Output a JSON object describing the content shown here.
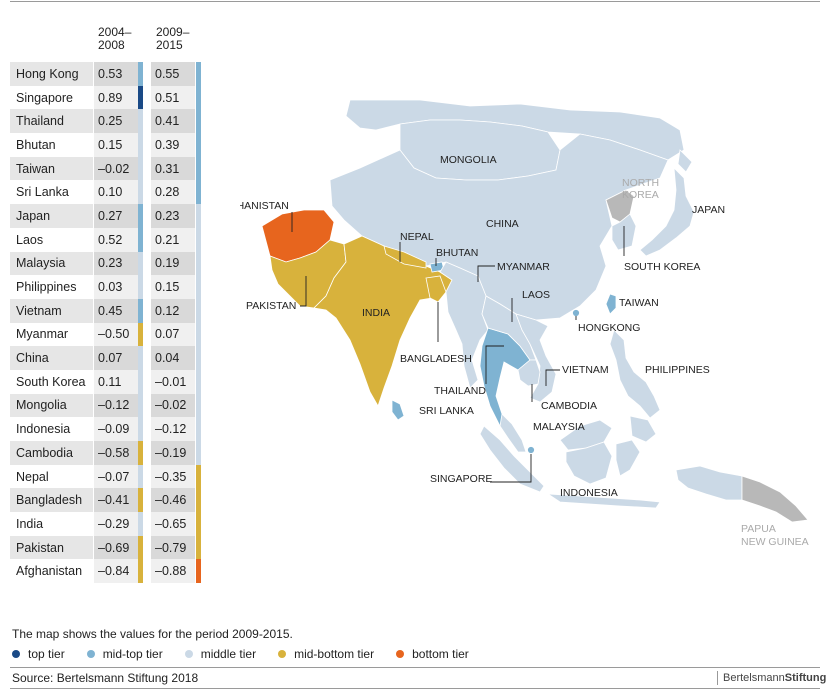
{
  "table": {
    "header_col1": "2004–\n2008",
    "header_col2": "2009–\n2015",
    "rows": [
      {
        "country": "Hong Kong",
        "v1": "0.53",
        "t1": "mid-top",
        "v2": "0.55",
        "t2": "mid-top"
      },
      {
        "country": "Singapore",
        "v1": "0.89",
        "t1": "top",
        "v2": "0.51",
        "t2": "mid-top"
      },
      {
        "country": "Thailand",
        "v1": "0.25",
        "t1": "middle",
        "v2": "0.41",
        "t2": "mid-top"
      },
      {
        "country": "Bhutan",
        "v1": "0.15",
        "t1": "middle",
        "v2": "0.39",
        "t2": "mid-top"
      },
      {
        "country": "Taiwan",
        "v1": "–0.02",
        "t1": "middle",
        "v2": "0.31",
        "t2": "mid-top"
      },
      {
        "country": "Sri Lanka",
        "v1": "0.10",
        "t1": "middle",
        "v2": "0.28",
        "t2": "mid-top"
      },
      {
        "country": "Japan",
        "v1": "0.27",
        "t1": "mid-top",
        "v2": "0.23",
        "t2": "middle"
      },
      {
        "country": "Laos",
        "v1": "0.52",
        "t1": "mid-top",
        "v2": "0.21",
        "t2": "middle"
      },
      {
        "country": "Malaysia",
        "v1": "0.23",
        "t1": "middle",
        "v2": "0.19",
        "t2": "middle"
      },
      {
        "country": "Philippines",
        "v1": "0.03",
        "t1": "middle",
        "v2": "0.15",
        "t2": "middle"
      },
      {
        "country": "Vietnam",
        "v1": "0.45",
        "t1": "mid-top",
        "v2": "0.12",
        "t2": "middle"
      },
      {
        "country": "Myanmar",
        "v1": "–0.50",
        "t1": "mid-bottom",
        "v2": "0.07",
        "t2": "middle"
      },
      {
        "country": "China",
        "v1": "0.07",
        "t1": "middle",
        "v2": "0.04",
        "t2": "middle"
      },
      {
        "country": "South Korea",
        "v1": "0.11",
        "t1": "middle",
        "v2": "–0.01",
        "t2": "middle"
      },
      {
        "country": "Mongolia",
        "v1": "–0.12",
        "t1": "middle",
        "v2": "–0.02",
        "t2": "middle"
      },
      {
        "country": "Indonesia",
        "v1": "–0.09",
        "t1": "middle",
        "v2": "–0.12",
        "t2": "middle"
      },
      {
        "country": "Cambodia",
        "v1": "–0.58",
        "t1": "mid-bottom",
        "v2": "–0.19",
        "t2": "middle"
      },
      {
        "country": "Nepal",
        "v1": "–0.07",
        "t1": "middle",
        "v2": "–0.35",
        "t2": "mid-bottom"
      },
      {
        "country": "Bangladesh",
        "v1": "–0.41",
        "t1": "mid-bottom",
        "v2": "–0.46",
        "t2": "mid-bottom"
      },
      {
        "country": "India",
        "v1": "–0.29",
        "t1": "middle",
        "v2": "–0.65",
        "t2": "mid-bottom"
      },
      {
        "country": "Pakistan",
        "v1": "–0.69",
        "t1": "mid-bottom",
        "v2": "–0.79",
        "t2": "mid-bottom"
      },
      {
        "country": "Afghanistan",
        "v1": "–0.84",
        "t1": "mid-bottom",
        "v2": "–0.88",
        "t2": "bottom"
      }
    ]
  },
  "tiers": {
    "top": "#1a4a86",
    "mid-top": "#7fb3d2",
    "middle": "#cbd9e6",
    "mid-bottom": "#d8b23c",
    "bottom": "#e7651e",
    "no-data": "#b8b8b8"
  },
  "map_labels": {
    "mongolia": "MONGOLIA",
    "north_korea": "NORTH\nKOREA",
    "japan": "JAPAN",
    "china": "CHINA",
    "afghanistan": "AFGHANISTAN",
    "nepal": "NEPAL",
    "bhutan": "BHUTAN",
    "myanmar": "MYANMAR",
    "south_korea": "SOUTH KOREA",
    "pakistan": "PAKISTAN",
    "india": "INDIA",
    "laos": "LAOS",
    "taiwan": "TAIWAN",
    "hongkong": "HONGKONG",
    "bangladesh": "BANGLADESH",
    "vietnam": "VIETNAM",
    "philippines": "PHILIPPINES",
    "thailand": "THAILAND",
    "sri_lanka": "SRI LANKA",
    "cambodia": "CAMBODIA",
    "malaysia": "MALAYSIA",
    "singapore": "SINGAPORE",
    "indonesia": "INDONESIA",
    "papua_new_guinea": "PAPUA\nNEW GUINEA"
  },
  "caption": "The map shows the values for the period 2009-2015.",
  "legend": [
    {
      "label": "top tier",
      "color": "#1a4a86"
    },
    {
      "label": "mid-top tier",
      "color": "#7fb3d2"
    },
    {
      "label": "middle tier",
      "color": "#cbd9e6"
    },
    {
      "label": "mid-bottom tier",
      "color": "#d8b23c"
    },
    {
      "label": "bottom tier",
      "color": "#e7651e"
    }
  ],
  "source": "Source: Bertelsmann Stiftung 2018",
  "brand": {
    "regular": "Bertelsmann",
    "bold": "Stiftung"
  }
}
